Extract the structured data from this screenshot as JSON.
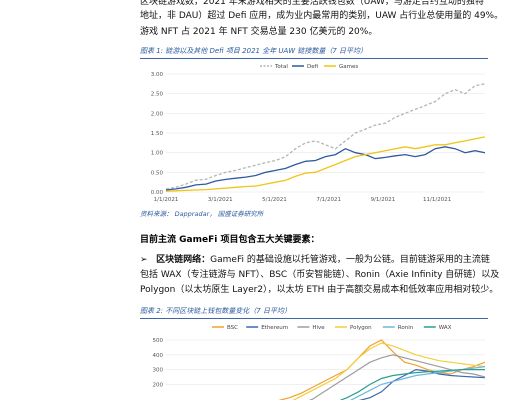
{
  "intro": {
    "line1": "区块链游戏数，2021 年末游戏相关的主要活跃钱包数（UAW，与游走合约互动的独特",
    "line2": "地址，非 DAU）超过 Defi 应用，成为业内最常用的类别，UAW 占行业总使用量的 49%。",
    "line3": "游戏 NFT 占 2021 年 NFT 交易总量 230 亿美元的 20%。"
  },
  "figure1": {
    "caption": "图表 1:  链游以及其他 Defi 项目 2021 全年 UAW 链接数量（7 日平均）",
    "source": "资料来源：  Dappradar， 国盛证券研究所"
  },
  "section": {
    "heading": "目前主流 GameFi 项目包含五大关键要素：",
    "bullet_marker": "➢",
    "bullet_label": "区块链网络：",
    "line1": "GameFi 的基础设施以托管游戏，一般为公链。目前链游采用的主流链",
    "line2": "包括 WAX（专注链游与 NFT）、BSC（币安智能链）、Ronin（Axie Infinity 自研链）以及",
    "line3": "Polygon（以太坊原生 Layer2），以太坊 ETH 由于高额交易成本和低效率应用相对较少。"
  },
  "figure2": {
    "caption": "图表 2:  不同区块链上钱包数量变化（7 日平均）"
  },
  "chart_data": [
    {
      "type": "line",
      "title": "",
      "ylabel": "",
      "xlabel": "",
      "ylim": [
        0,
        3
      ],
      "yticks": [
        "0.00",
        "0.50",
        "1.00",
        "1.50",
        "2.00",
        "2.50",
        "3.00"
      ],
      "xticks": [
        "1/1/2021",
        "3/1/2021",
        "5/1/2021",
        "7/1/2021",
        "9/1/2021",
        "11/1/2021"
      ],
      "legend_position": "top",
      "series": [
        {
          "name": "Total",
          "color": "#b5b5b5",
          "dashed": true,
          "values": [
            0.08,
            0.12,
            0.2,
            0.3,
            0.32,
            0.42,
            0.5,
            0.55,
            0.62,
            0.68,
            0.75,
            0.8,
            0.9,
            1.1,
            1.25,
            1.3,
            1.2,
            1.1,
            1.3,
            1.5,
            1.6,
            1.7,
            1.75,
            1.9,
            2.0,
            2.1,
            2.2,
            2.3,
            2.5,
            2.6,
            2.5,
            2.7,
            2.75
          ]
        },
        {
          "name": "Defi",
          "color": "#2f5a9e",
          "dashed": false,
          "values": [
            0.05,
            0.08,
            0.12,
            0.18,
            0.2,
            0.28,
            0.32,
            0.35,
            0.38,
            0.42,
            0.5,
            0.55,
            0.6,
            0.7,
            0.78,
            0.8,
            0.9,
            0.95,
            1.1,
            1.0,
            0.95,
            0.85,
            0.88,
            0.92,
            0.95,
            0.9,
            0.95,
            1.1,
            1.15,
            1.1,
            1.0,
            1.05,
            1.0
          ]
        },
        {
          "name": "Games",
          "color": "#f0c419",
          "dashed": false,
          "values": [
            0.02,
            0.03,
            0.04,
            0.05,
            0.06,
            0.08,
            0.1,
            0.12,
            0.14,
            0.15,
            0.2,
            0.25,
            0.3,
            0.4,
            0.48,
            0.5,
            0.6,
            0.7,
            0.8,
            0.9,
            0.95,
            1.0,
            1.05,
            1.1,
            1.15,
            1.1,
            1.15,
            1.2,
            1.2,
            1.25,
            1.3,
            1.35,
            1.4
          ]
        }
      ]
    },
    {
      "type": "line",
      "title": "",
      "ylim": [
        0,
        500
      ],
      "yticks": [
        "200",
        "300",
        "400",
        "500"
      ],
      "legend_position": "top",
      "series": [
        {
          "name": "BSC",
          "color": "#f0a22e",
          "values": [
            40,
            45,
            50,
            55,
            60,
            65,
            70,
            80,
            90,
            110,
            140,
            180,
            220,
            260,
            300,
            380,
            460,
            500,
            420,
            350,
            330,
            300,
            280,
            270,
            300,
            320,
            350
          ]
        },
        {
          "name": "Ethereum",
          "color": "#3a68b0",
          "values": [
            60,
            60,
            60,
            62,
            62,
            63,
            64,
            64,
            65,
            66,
            68,
            70,
            72,
            75,
            80,
            90,
            110,
            150,
            220,
            260,
            300,
            290,
            270,
            260,
            255,
            250,
            245
          ]
        },
        {
          "name": "Hive",
          "color": "#9d9d9d",
          "values": [
            20,
            20,
            22,
            24,
            26,
            28,
            30,
            35,
            40,
            50,
            70,
            100,
            150,
            200,
            250,
            300,
            350,
            380,
            400,
            380,
            360,
            340,
            320,
            300,
            280,
            270,
            250
          ]
        },
        {
          "name": "Polygon",
          "color": "#f3cf3b",
          "values": [
            5,
            6,
            8,
            10,
            12,
            15,
            20,
            30,
            50,
            80,
            120,
            160,
            200,
            240,
            300,
            380,
            440,
            480,
            460,
            430,
            400,
            380,
            360,
            350,
            340,
            330,
            320
          ]
        },
        {
          "name": "Ronin",
          "color": "#6eb6e0",
          "values": [
            0,
            0,
            0,
            0,
            0,
            0,
            0,
            0,
            0,
            0,
            5,
            10,
            20,
            40,
            80,
            120,
            160,
            200,
            220,
            240,
            260,
            270,
            280,
            290,
            300,
            310,
            320
          ]
        },
        {
          "name": "WAX",
          "color": "#2e9e8f",
          "values": [
            10,
            10,
            12,
            14,
            16,
            18,
            20,
            24,
            28,
            34,
            40,
            50,
            60,
            80,
            110,
            150,
            200,
            240,
            260,
            270,
            280,
            285,
            290,
            295,
            300,
            300,
            300
          ]
        }
      ]
    }
  ]
}
